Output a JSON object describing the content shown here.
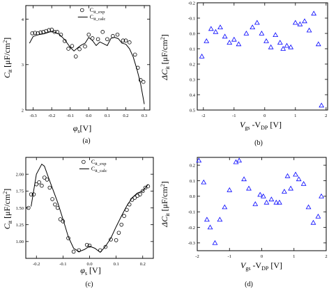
{
  "figure": {
    "panel_labels": [
      "(a)",
      "(b)",
      "(c)",
      "(d)"
    ]
  },
  "chart_data": [
    {
      "type": "scatter",
      "panel": "(a)",
      "xlabel_main": "φ",
      "xlabel_sub": "s",
      "xlabel_unit": "[V]",
      "ylabel_main": "C",
      "ylabel_sub": "it",
      "ylabel_unit": " [μF/cm",
      "ylabel_sup": "2",
      "ylabel_end": "]",
      "xlim": [
        -0.34,
        0.33
      ],
      "ylim": [
        2,
        4.3
      ],
      "xticks": [
        -0.3,
        -0.2,
        -0.1,
        0.0,
        0.1,
        0.2,
        0.3
      ],
      "xtick_labels": [
        "-0.3",
        "-0.2",
        "-0.1",
        "0.0",
        "0.1",
        "0.2",
        "0.3"
      ],
      "yticks": [
        2,
        3,
        4
      ],
      "ytick_labels": [
        "2",
        "3",
        "4"
      ],
      "legend": [
        {
          "kind": "marker",
          "main": "C",
          "sub": "it_exp"
        },
        {
          "kind": "line",
          "main": "C",
          "sub": "it_calc"
        }
      ],
      "legend_position": "top-right",
      "series": [
        {
          "marker": "circle",
          "color": "#000000",
          "x": [
            -0.305,
            -0.29,
            -0.275,
            -0.26,
            -0.245,
            -0.23,
            -0.215,
            -0.2,
            -0.185,
            -0.17,
            -0.15,
            -0.13,
            -0.11,
            -0.09,
            -0.07,
            -0.05,
            -0.02,
            0.0,
            0.02,
            0.05,
            0.075,
            0.1,
            0.13,
            0.155,
            0.185,
            0.2,
            0.22,
            0.25,
            0.265,
            0.28,
            0.295
          ],
          "y": [
            3.69,
            3.7,
            3.69,
            3.71,
            3.72,
            3.74,
            3.76,
            3.77,
            3.72,
            3.72,
            3.66,
            3.52,
            3.35,
            3.41,
            3.18,
            3.34,
            3.4,
            3.66,
            3.58,
            3.56,
            3.72,
            3.56,
            3.63,
            3.66,
            3.53,
            3.53,
            3.49,
            3.22,
            2.93,
            2.66,
            2.62
          ]
        },
        {
          "marker": "none",
          "line": "solid",
          "color": "#000000",
          "x": [
            -0.32,
            -0.3,
            -0.27,
            -0.24,
            -0.21,
            -0.19,
            -0.16,
            -0.13,
            -0.1,
            -0.08,
            -0.06,
            -0.04,
            -0.02,
            0.0,
            0.02,
            0.04,
            0.06,
            0.08,
            0.1,
            0.12,
            0.14,
            0.16,
            0.18,
            0.2,
            0.22,
            0.24,
            0.26,
            0.28,
            0.3
          ],
          "y": [
            3.47,
            3.62,
            3.66,
            3.68,
            3.72,
            3.72,
            3.67,
            3.55,
            3.38,
            3.3,
            3.37,
            3.43,
            3.47,
            3.6,
            3.53,
            3.42,
            3.5,
            3.46,
            3.42,
            3.58,
            3.6,
            3.57,
            3.47,
            3.45,
            3.35,
            3.17,
            2.9,
            2.58,
            2.13
          ]
        }
      ]
    },
    {
      "type": "scatter",
      "panel": "(b)",
      "xlabel_main": "V",
      "xlabel_sub": "gs",
      "xlabel_mid": " -V",
      "xlabel_sub2": "DP",
      "xlabel_unit": " [V]",
      "ylabel_main": "ΔC",
      "ylabel_sub": "it",
      "ylabel_unit": " [μF/cm",
      "ylabel_sup": "2",
      "ylabel_end": "]",
      "xlim": [
        -2.2,
        2.05
      ],
      "ylim": [
        -0.2,
        0.5
      ],
      "y_inverted": true,
      "xticks": [
        -2,
        -1,
        0,
        1,
        2
      ],
      "xtick_labels": [
        "-2",
        "-1",
        "0",
        "1",
        "2"
      ],
      "yticks": [
        -0.2,
        -0.1,
        0.0,
        0.1,
        0.2,
        0.3,
        0.4,
        0.5
      ],
      "ytick_labels": [
        "-0.2",
        "-0.1",
        "0.0",
        "0.1",
        "0.2",
        "0.3",
        "0.4",
        "0.5"
      ],
      "series": [
        {
          "marker": "triangle",
          "color": "#0000ff",
          "x": [
            -2.05,
            -1.9,
            -1.75,
            -1.6,
            -1.45,
            -1.3,
            -1.15,
            -1.0,
            -0.85,
            -0.6,
            -0.4,
            -0.25,
            -0.1,
            0.05,
            0.2,
            0.35,
            0.5,
            0.6,
            0.72,
            0.85,
            1.0,
            1.15,
            1.3,
            1.45,
            1.6,
            1.75,
            1.85
          ],
          "y": [
            0.15,
            0.05,
            -0.03,
            -0.01,
            -0.04,
            0.02,
            0.06,
            0.04,
            0.07,
            0.0,
            -0.04,
            -0.07,
            0.0,
            0.05,
            0.09,
            0.01,
            0.06,
            0.1,
            0.08,
            0.09,
            -0.07,
            -0.06,
            -0.08,
            -0.02,
            -0.13,
            0.07,
            0.47
          ]
        }
      ]
    },
    {
      "type": "scatter",
      "panel": "(c)",
      "xlabel_main": "φ",
      "xlabel_sub": "s",
      "xlabel_unit": " [V]",
      "ylabel_main": "C",
      "ylabel_sub": "it",
      "ylabel_unit": " [μF/cm",
      "ylabel_sup": "2",
      "ylabel_end": "]",
      "xlim": [
        -0.24,
        0.24
      ],
      "ylim": [
        0.75,
        2.25
      ],
      "xticks": [
        -0.2,
        -0.1,
        0.0,
        0.1,
        0.2
      ],
      "xtick_labels": [
        "-0.2",
        "-0.1",
        "0.0",
        "0.1",
        "0.2"
      ],
      "yticks": [
        1.0,
        1.25,
        1.5,
        1.75,
        2.0
      ],
      "ytick_labels": [
        "1.00",
        "1.25",
        "1.50",
        "1.75",
        "2.00"
      ],
      "legend": [
        {
          "kind": "marker",
          "main": "C",
          "sub": "it_exp"
        },
        {
          "kind": "line",
          "main": "C",
          "sub": "it_calc"
        }
      ],
      "legend_position": "top-right",
      "series": [
        {
          "marker": "circle",
          "color": "#000000",
          "x": [
            -0.23,
            -0.22,
            -0.21,
            -0.2,
            -0.19,
            -0.18,
            -0.17,
            -0.16,
            -0.15,
            -0.14,
            -0.13,
            -0.12,
            -0.11,
            -0.1,
            -0.08,
            -0.06,
            -0.04,
            -0.01,
            0.0,
            0.04,
            0.06,
            0.08,
            0.1,
            0.11,
            0.12,
            0.13,
            0.14,
            0.15,
            0.16,
            0.17,
            0.18,
            0.19,
            0.2,
            0.21,
            0.22
          ],
          "y": [
            1.5,
            1.7,
            1.7,
            1.85,
            1.88,
            1.83,
            1.95,
            1.92,
            1.8,
            1.63,
            1.55,
            1.5,
            1.33,
            1.3,
            1.05,
            0.85,
            0.87,
            0.95,
            0.94,
            0.87,
            0.92,
            1.03,
            1.02,
            1.13,
            1.25,
            1.38,
            1.47,
            1.55,
            1.62,
            1.65,
            1.68,
            1.7,
            1.75,
            1.8,
            1.82
          ]
        },
        {
          "marker": "none",
          "line": "solid",
          "color": "#000000",
          "x": [
            -0.22,
            -0.2,
            -0.18,
            -0.17,
            -0.15,
            -0.12,
            -0.1,
            -0.08,
            -0.06,
            -0.04,
            -0.02,
            0.0,
            0.02,
            0.04,
            0.06,
            0.08,
            0.1,
            0.12,
            0.14,
            0.16,
            0.18,
            0.2,
            0.22
          ],
          "y": [
            1.52,
            2.0,
            2.15,
            2.12,
            1.9,
            1.58,
            1.33,
            1.07,
            0.9,
            0.85,
            0.88,
            0.93,
            0.9,
            0.84,
            0.93,
            1.05,
            1.22,
            1.38,
            1.53,
            1.65,
            1.72,
            1.75,
            1.85
          ]
        }
      ]
    },
    {
      "type": "scatter",
      "panel": "(d)",
      "xlabel_main": "V",
      "xlabel_sub": "gs",
      "xlabel_mid": " -V",
      "xlabel_sub2": "DP",
      "xlabel_unit": " [V]",
      "ylabel_main": "ΔC",
      "ylabel_sub": "it",
      "ylabel_unit": " [μF/cm",
      "ylabel_sup": "2",
      "ylabel_end": "]",
      "xlim": [
        -2.0,
        2.0
      ],
      "ylim": [
        -0.35,
        0.25
      ],
      "xticks": [
        -2,
        -1,
        0,
        1,
        2
      ],
      "xtick_labels": [
        "-2",
        "-1",
        "0",
        "1",
        "2"
      ],
      "yticks": [
        -0.3,
        -0.2,
        -0.1,
        0.0,
        0.1,
        0.2
      ],
      "ytick_labels": [
        "-0.3",
        "-0.2",
        "-0.1",
        "0.0",
        "0.1",
        "0.2"
      ],
      "series": [
        {
          "marker": "triangle",
          "color": "#0000ff",
          "x": [
            -1.95,
            -1.8,
            -1.7,
            -1.6,
            -1.45,
            -1.3,
            -1.15,
            -1.0,
            -0.8,
            -0.7,
            -0.55,
            -0.4,
            -0.2,
            -0.05,
            0.05,
            0.15,
            0.3,
            0.45,
            0.55,
            0.7,
            0.8,
            0.9,
            1.05,
            1.15,
            1.3,
            1.45,
            1.6,
            1.75,
            1.85
          ],
          "y": [
            0.23,
            0.09,
            -0.15,
            -0.2,
            -0.3,
            -0.15,
            -0.07,
            0.04,
            0.22,
            0.23,
            0.11,
            0.05,
            -0.05,
            0.01,
            0.0,
            -0.04,
            -0.02,
            -0.04,
            -0.04,
            0.03,
            0.13,
            0.05,
            0.14,
            0.11,
            0.08,
            -0.07,
            -0.17,
            -0.13,
            0.0
          ]
        }
      ]
    }
  ]
}
